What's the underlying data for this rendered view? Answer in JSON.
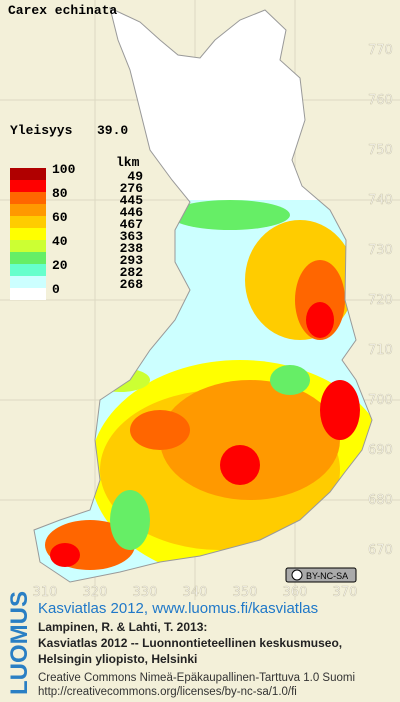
{
  "title": "Carex echinata",
  "frequency": {
    "label": "Yleisyys",
    "value": "39.0"
  },
  "legend": {
    "percent_labels": [
      100,
      80,
      60,
      40,
      20,
      0
    ],
    "count_header": "lkm",
    "counts": [
      49,
      276,
      445,
      446,
      467,
      363,
      238,
      293,
      282,
      268
    ],
    "colors": [
      "#b00000",
      "#ff0000",
      "#ff6600",
      "#ff9900",
      "#ffcc00",
      "#ffff00",
      "#ccff33",
      "#66ee66",
      "#66ffcc",
      "#ccffff",
      "#ffffff"
    ]
  },
  "map_grid": {
    "northing_labels": [
      770,
      760,
      750,
      740,
      730,
      720,
      710,
      700,
      690,
      680,
      670
    ],
    "easting_labels": [
      310,
      320,
      330,
      340,
      350,
      360,
      370
    ]
  },
  "license_badge": "BY-NC-SA",
  "footer": {
    "brand": "LUOMUS",
    "link": "Kasviatlas 2012, www.luomus.fi/kasviatlas",
    "citation": [
      "Lampinen, R. & Lahti, T. 2013:",
      "Kasviatlas 2012 -- Luonnontieteellinen keskusmuseo,",
      "Helsingin yliopisto, Helsinki"
    ],
    "license": [
      "Creative Commons Nimeä-Epäkaupallinen-Tarttuva 1.0 Suomi",
      "http://creativecommons.org/licenses/by-nc-sa/1.0/fi"
    ]
  }
}
